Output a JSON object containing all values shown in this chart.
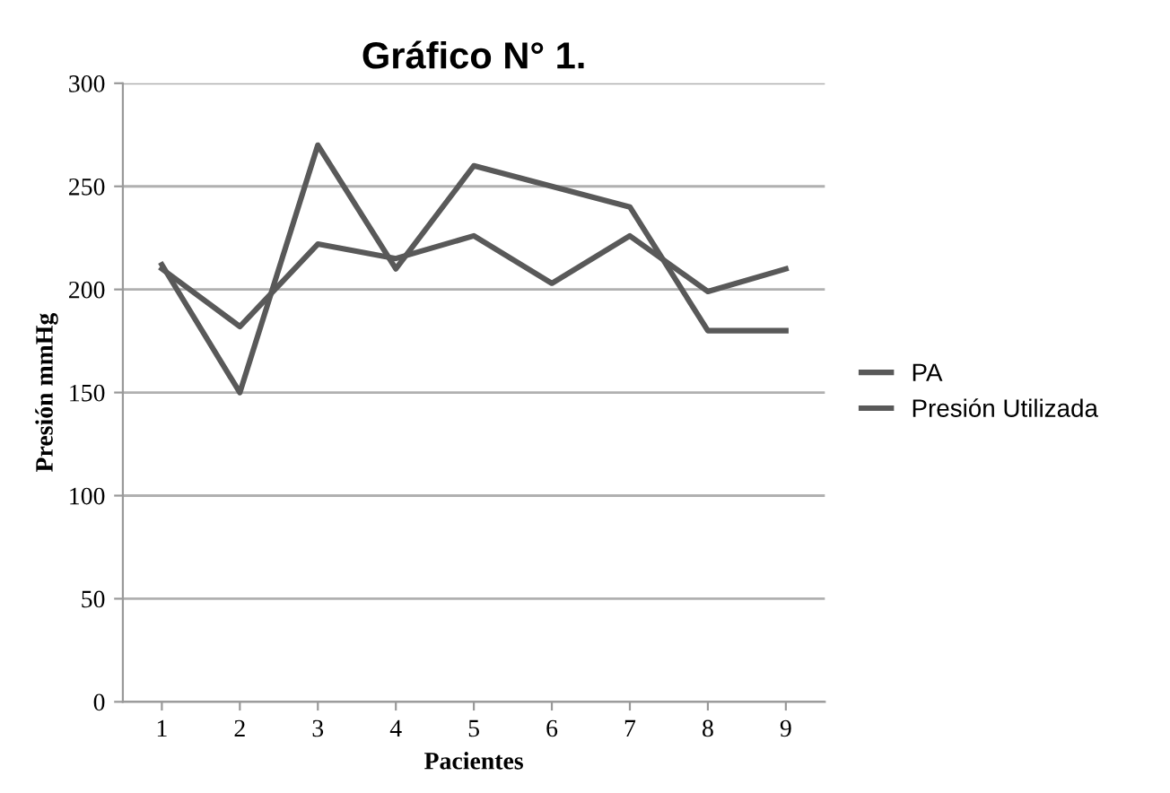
{
  "chart_data": {
    "type": "line",
    "title": "Gráfico N° 1.",
    "xlabel": "Pacientes",
    "ylabel": "Presión mmHg",
    "categories": [
      "1",
      "2",
      "3",
      "4",
      "5",
      "6",
      "7",
      "8",
      "9"
    ],
    "series": [
      {
        "name": "PA",
        "color": "#595959",
        "values": [
          210,
          182,
          222,
          215,
          226,
          203,
          226,
          199,
          210
        ]
      },
      {
        "name": "Presión Utilizada",
        "color": "#595959",
        "values": [
          212,
          150,
          270,
          210,
          260,
          250,
          240,
          180,
          180
        ]
      }
    ],
    "ylim": [
      0,
      300
    ],
    "yticks": [
      0,
      50,
      100,
      150,
      200,
      250,
      300
    ],
    "grid": "y",
    "legend": "right",
    "marker": "none",
    "line_style": "solid"
  }
}
